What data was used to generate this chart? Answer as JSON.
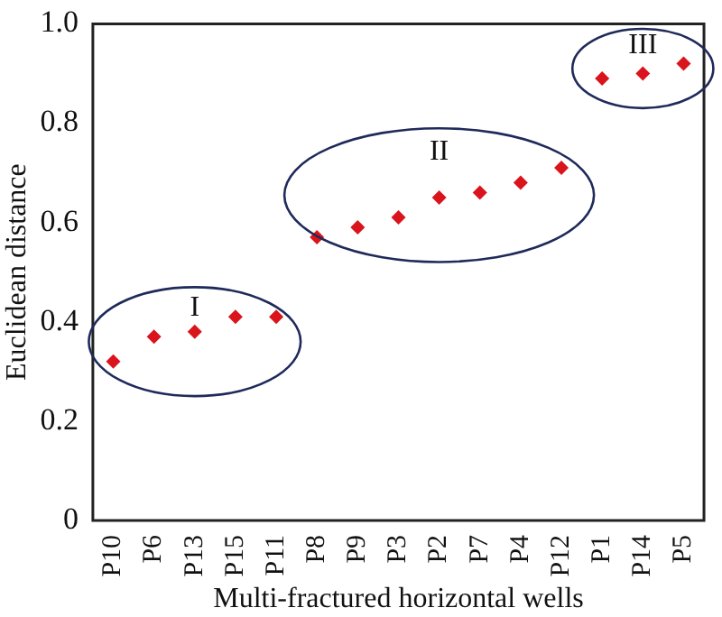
{
  "chart_data": {
    "type": "scatter",
    "xlabel": "Multi-fractured horizontal wells",
    "ylabel": "Euclidean distance",
    "categories": [
      "P10",
      "P6",
      "P13",
      "P15",
      "P11",
      "P8",
      "P9",
      "P3",
      "P2",
      "P7",
      "P4",
      "P12",
      "P1",
      "P14",
      "P5"
    ],
    "values": [
      0.32,
      0.37,
      0.38,
      0.41,
      0.41,
      0.57,
      0.59,
      0.61,
      0.65,
      0.66,
      0.68,
      0.71,
      0.89,
      0.9,
      0.92
    ],
    "color": "#d9141c",
    "marker": "diamond",
    "grid": false,
    "legend": false,
    "ylim": [
      0,
      1
    ],
    "yticks": [
      0,
      0.2,
      0.4,
      0.6,
      0.8,
      {
        "value": 1,
        "label": "1.0"
      }
    ],
    "annotations": [
      "I",
      "II",
      "III"
    ]
  }
}
